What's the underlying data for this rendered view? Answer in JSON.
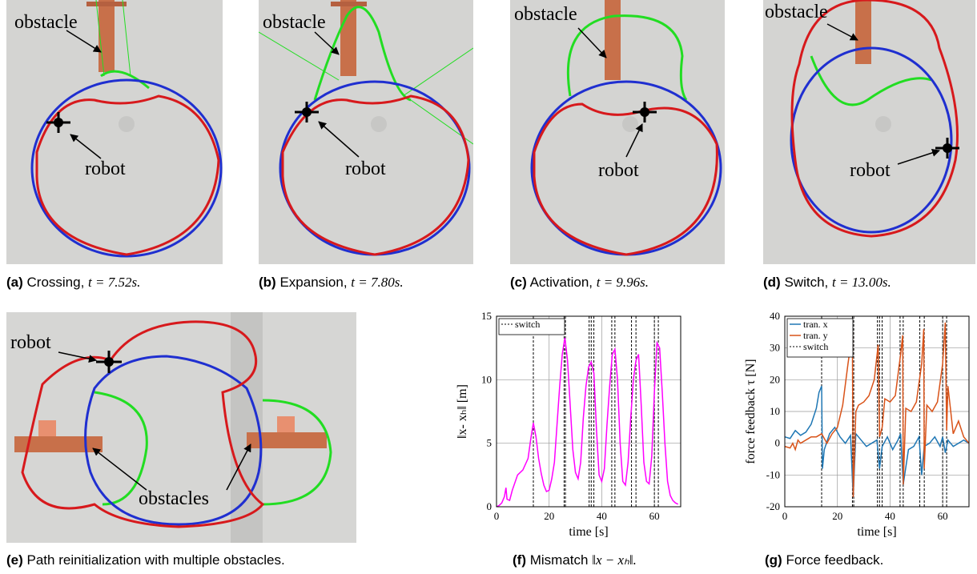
{
  "panels": [
    {
      "id": "a",
      "letter": "(a)",
      "caption": "Crossing, ",
      "time": "t = 7.52s.",
      "label_obstacle": "obstacle",
      "label_robot": "robot"
    },
    {
      "id": "b",
      "letter": "(b)",
      "caption": "Expansion, ",
      "time": "t = 7.80s.",
      "label_obstacle": "obstacle",
      "label_robot": "robot"
    },
    {
      "id": "c",
      "letter": "(c)",
      "caption": "Activation, ",
      "time": "t = 9.96s.",
      "label_obstacle": "obstacle",
      "label_robot": "robot"
    },
    {
      "id": "d",
      "letter": "(d)",
      "caption": "Switch, ",
      "time": "t = 13.00s.",
      "label_obstacle": "obstacle",
      "label_robot": "robot"
    },
    {
      "id": "e",
      "letter": "(e)",
      "caption": "Path reinitialization with multiple obstacles.",
      "label_obstacles": "obstacles",
      "label_robot": "robot"
    },
    {
      "id": "f",
      "letter": "(f)",
      "caption": "Mismatch ",
      "caption_math": "‖x − xₕ‖."
    },
    {
      "id": "g",
      "letter": "(g)",
      "caption": "Force feedback."
    }
  ],
  "colors": {
    "path_red": "#d7191c",
    "path_blue": "#1f2fd0",
    "path_green": "#22dd22",
    "obstacle": "#c8704a",
    "magenta": "#ff00ff",
    "series_x": "#1f77b4",
    "series_y": "#d95319"
  },
  "chart_data": [
    {
      "type": "line",
      "xlabel": "time [s]",
      "ylabel": "‖x- xₕ‖ [m]",
      "xlim": [
        0,
        70
      ],
      "ylim": [
        0,
        15
      ],
      "xticks": [
        "0",
        "20",
        "40",
        "60"
      ],
      "yticks": [
        "0",
        "5",
        "10",
        "15"
      ],
      "legend": [
        {
          "name": "switch",
          "style": "dotted"
        }
      ],
      "legend_position": "top-left",
      "switch_times": [
        14,
        25.7,
        26.2,
        35.2,
        36,
        37,
        43.8,
        45,
        51.3,
        53,
        60,
        61.5
      ],
      "grid_x": [
        20,
        40,
        60
      ],
      "series": [
        {
          "name": "",
          "x": [
            0,
            1,
            2,
            3,
            3.6,
            4,
            5,
            6,
            8,
            10,
            12,
            13,
            14,
            15,
            16,
            17,
            18,
            19,
            20,
            21,
            22,
            23,
            24,
            25,
            26,
            27,
            28,
            29,
            30,
            31,
            32,
            33,
            34,
            35,
            36,
            37,
            38,
            39,
            40,
            41,
            42,
            43,
            44,
            45,
            46,
            47,
            48,
            49,
            50,
            51,
            52,
            53,
            54,
            55,
            56,
            57,
            58,
            59,
            60,
            61,
            62,
            63,
            64,
            65,
            66,
            67,
            68,
            69
          ],
          "y": [
            0,
            0.1,
            0.3,
            0.8,
            1.5,
            0.6,
            0.5,
            1.3,
            2.5,
            2.9,
            3.8,
            5.3,
            6.6,
            5.5,
            3.8,
            2.6,
            1.7,
            1.2,
            1.3,
            2.2,
            3.5,
            6.5,
            9.5,
            12,
            13.3,
            11.5,
            8,
            4.5,
            2.7,
            2.2,
            3.5,
            7,
            9.5,
            11,
            11.4,
            10.5,
            6,
            2.5,
            2,
            3,
            6.5,
            9.5,
            12,
            12.4,
            10,
            5,
            2,
            1.7,
            3.5,
            7,
            10,
            11.5,
            12,
            8,
            3.5,
            2,
            1.8,
            4,
            9,
            12.9,
            12.5,
            9,
            5,
            2,
            0.9,
            0.5,
            0.3,
            0.2
          ]
        }
      ]
    },
    {
      "type": "line",
      "xlabel": "time [s]",
      "ylabel": "force feedback τ [N]",
      "xlim": [
        0,
        70
      ],
      "ylim": [
        -20,
        40
      ],
      "xticks": [
        "0",
        "20",
        "40",
        "60"
      ],
      "yticks": [
        "-20",
        "-10",
        "0",
        "10",
        "20",
        "30",
        "40"
      ],
      "legend": [
        {
          "name": "tran. x"
        },
        {
          "name": "tran. y"
        },
        {
          "name": "switch",
          "style": "dotted"
        }
      ],
      "legend_position": "top-left",
      "switch_times": [
        14,
        25.7,
        26.2,
        35.2,
        36,
        37,
        43.8,
        45,
        51.3,
        53,
        60,
        61.5
      ],
      "grid_x": [
        20,
        40,
        60
      ],
      "series": [
        {
          "name": "tran. x",
          "x": [
            0,
            2,
            4,
            6,
            8,
            10,
            12,
            13,
            14,
            14.3,
            15,
            17,
            19,
            21,
            23,
            25,
            26,
            27,
            29,
            31,
            33,
            35,
            36,
            37,
            39,
            41,
            43,
            44,
            45,
            47,
            49,
            51,
            52,
            53,
            55,
            57,
            59,
            60,
            61,
            62,
            64,
            66,
            68,
            70
          ],
          "y": [
            2,
            1.5,
            4,
            2.5,
            3.5,
            6,
            11,
            16,
            18,
            -8,
            -2,
            3,
            5,
            2,
            0,
            2.5,
            -17,
            3,
            1,
            -1,
            0,
            1,
            -8,
            -1,
            2,
            -2,
            1,
            3,
            -13,
            -2,
            -1,
            2,
            -10,
            -1,
            0,
            2,
            -1,
            2,
            -3,
            1,
            -1,
            0,
            1,
            0
          ]
        },
        {
          "name": "tran. y",
          "x": [
            0,
            2,
            3,
            4,
            5,
            6,
            8,
            10,
            12,
            14,
            16,
            18,
            20,
            22,
            24,
            25.7,
            26,
            27,
            28,
            30,
            32,
            34,
            35.5,
            36,
            37,
            38,
            40,
            42,
            44,
            44.8,
            45,
            46,
            48,
            50,
            52,
            52.8,
            53,
            54,
            56,
            58,
            60,
            61,
            61.5,
            62,
            64,
            66,
            68,
            70
          ],
          "y": [
            -1,
            -1.5,
            0,
            -2,
            1,
            0,
            1,
            2,
            2,
            3,
            0,
            3,
            5,
            12,
            25,
            35,
            -17,
            10,
            12,
            13,
            15,
            20,
            31,
            2,
            5,
            14,
            13,
            15,
            28,
            34,
            -13,
            11,
            10,
            13,
            25,
            36,
            -8,
            12,
            10,
            13,
            25,
            38,
            4,
            18,
            3,
            7,
            2,
            0
          ]
        }
      ]
    }
  ]
}
